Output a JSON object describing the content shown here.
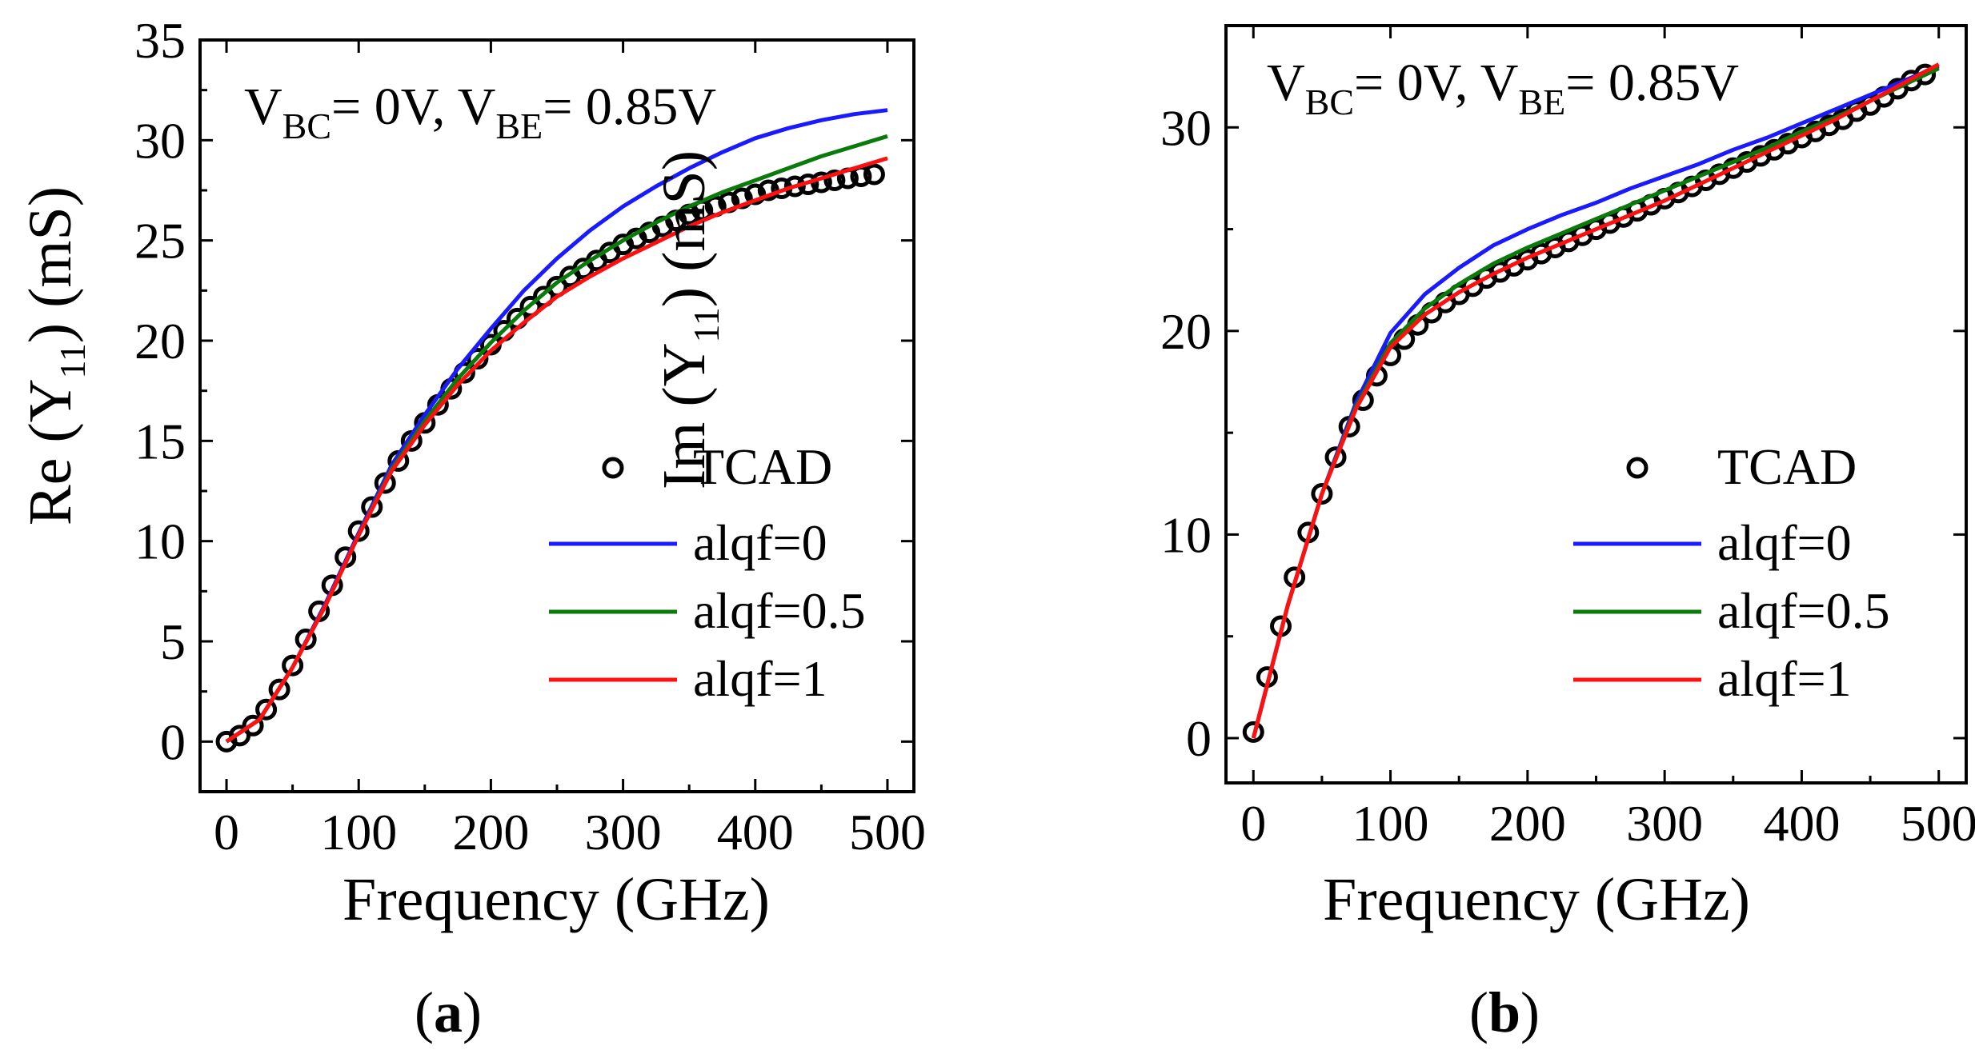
{
  "chart_data": [
    {
      "type": "line",
      "panel_label": "a",
      "xlabel": "Frequency (GHz)",
      "ylabel": {
        "prefix": "Re (Y",
        "sub": "11",
        "suffix": ") (mS)"
      },
      "xlim": [
        -20,
        520
      ],
      "ylim": [
        -2.5,
        35
      ],
      "xticks": [
        0,
        100,
        200,
        300,
        400,
        500
      ],
      "yticks": [
        0,
        5,
        10,
        15,
        20,
        25,
        30,
        35
      ],
      "grid": false,
      "legend_position": "lower-right",
      "annotation": {
        "v1": "V",
        "s1": "BC",
        "m1": "= 0V, V",
        "s2": "BE",
        "m2": "= 0.85V"
      },
      "series": [
        {
          "name": "TCAD",
          "style": "markers",
          "color": "#000000",
          "x": [
            0,
            10,
            20,
            30,
            40,
            50,
            60,
            70,
            80,
            90,
            100,
            110,
            120,
            130,
            140,
            150,
            160,
            170,
            180,
            190,
            200,
            210,
            220,
            230,
            240,
            250,
            260,
            270,
            280,
            290,
            300,
            310,
            320,
            330,
            340,
            350,
            360,
            370,
            380,
            390,
            400,
            410,
            420,
            430,
            440,
            450,
            460,
            470,
            480,
            490
          ],
          "y": [
            0,
            0.3,
            0.8,
            1.6,
            2.6,
            3.8,
            5.1,
            6.5,
            7.8,
            9.2,
            10.5,
            11.7,
            12.9,
            14.0,
            15.0,
            15.9,
            16.8,
            17.6,
            18.4,
            19.1,
            19.8,
            20.5,
            21.1,
            21.7,
            22.2,
            22.7,
            23.2,
            23.6,
            24.0,
            24.4,
            24.8,
            25.1,
            25.4,
            25.7,
            26.0,
            26.3,
            26.5,
            26.7,
            26.9,
            27.1,
            27.3,
            27.5,
            27.6,
            27.7,
            27.8,
            27.9,
            28.0,
            28.1,
            28.2,
            28.3
          ]
        },
        {
          "name": "alqf=0",
          "style": "line",
          "color": "#1a1aff",
          "x": [
            0,
            25,
            50,
            75,
            100,
            125,
            150,
            175,
            200,
            225,
            250,
            275,
            300,
            325,
            350,
            375,
            400,
            425,
            450,
            475,
            500
          ],
          "y": [
            0,
            1.1,
            3.7,
            6.9,
            10.4,
            13.8,
            16.3,
            18.6,
            20.6,
            22.5,
            24.1,
            25.5,
            26.7,
            27.7,
            28.6,
            29.4,
            30.1,
            30.6,
            31.0,
            31.3,
            31.5
          ]
        },
        {
          "name": "alqf=0.5",
          "style": "line",
          "color": "#0a7a0a",
          "x": [
            0,
            25,
            50,
            75,
            100,
            125,
            150,
            175,
            200,
            225,
            250,
            275,
            300,
            325,
            350,
            375,
            400,
            425,
            450,
            475,
            500
          ],
          "y": [
            0,
            1.1,
            3.7,
            6.8,
            10.3,
            13.6,
            16.0,
            18.1,
            19.9,
            21.5,
            22.9,
            24.0,
            25.0,
            25.9,
            26.7,
            27.4,
            28.0,
            28.6,
            29.2,
            29.7,
            30.2
          ]
        },
        {
          "name": "alqf=1",
          "style": "line",
          "color": "#ff1010",
          "x": [
            0,
            25,
            50,
            75,
            100,
            125,
            150,
            175,
            200,
            225,
            250,
            275,
            300,
            325,
            350,
            375,
            400,
            425,
            450,
            475,
            500
          ],
          "y": [
            0,
            1.1,
            3.7,
            6.8,
            10.3,
            13.5,
            15.8,
            17.8,
            19.5,
            20.9,
            22.2,
            23.2,
            24.1,
            24.9,
            25.7,
            26.4,
            27.0,
            27.6,
            28.1,
            28.6,
            29.1
          ]
        }
      ]
    },
    {
      "type": "line",
      "panel_label": "b",
      "xlabel": "Frequency (GHz)",
      "ylabel": {
        "prefix": "Im (Y",
        "sub": "11",
        "suffix": ") (mS)"
      },
      "xlim": [
        -20,
        520
      ],
      "ylim": [
        -2.2,
        35
      ],
      "xticks": [
        0,
        100,
        200,
        300,
        400,
        500
      ],
      "yticks": [
        0,
        10,
        20,
        30
      ],
      "grid": false,
      "legend_position": "lower-right",
      "annotation": {
        "v1": "V",
        "s1": "BC",
        "m1": "= 0V, V",
        "s2": "BE",
        "m2": "= 0.85V"
      },
      "series": [
        {
          "name": "TCAD",
          "style": "markers",
          "color": "#000000",
          "x": [
            0,
            10,
            20,
            30,
            40,
            50,
            60,
            70,
            80,
            90,
            100,
            110,
            120,
            130,
            140,
            150,
            160,
            170,
            180,
            190,
            200,
            210,
            220,
            230,
            240,
            250,
            260,
            270,
            280,
            290,
            300,
            310,
            320,
            330,
            340,
            350,
            360,
            370,
            380,
            390,
            400,
            410,
            420,
            430,
            440,
            450,
            460,
            470,
            480,
            490
          ],
          "y": [
            0.3,
            3.0,
            5.5,
            7.9,
            10.1,
            12.0,
            13.8,
            15.3,
            16.6,
            17.8,
            18.8,
            19.6,
            20.3,
            20.9,
            21.4,
            21.8,
            22.2,
            22.6,
            22.9,
            23.2,
            23.5,
            23.8,
            24.1,
            24.4,
            24.7,
            25.0,
            25.3,
            25.6,
            25.9,
            26.2,
            26.5,
            26.8,
            27.1,
            27.4,
            27.7,
            28.0,
            28.3,
            28.6,
            28.9,
            29.2,
            29.5,
            29.8,
            30.1,
            30.4,
            30.8,
            31.1,
            31.5,
            31.9,
            32.3,
            32.6
          ]
        },
        {
          "name": "alqf=0",
          "style": "line",
          "color": "#1a1aff",
          "x": [
            0,
            25,
            50,
            75,
            100,
            125,
            150,
            175,
            200,
            225,
            250,
            275,
            300,
            325,
            350,
            375,
            400,
            425,
            450,
            475,
            500
          ],
          "y": [
            0,
            6.5,
            12.0,
            16.5,
            19.9,
            21.8,
            23.1,
            24.2,
            25.0,
            25.7,
            26.3,
            27.0,
            27.6,
            28.2,
            28.9,
            29.5,
            30.2,
            30.9,
            31.6,
            32.3,
            33.0
          ]
        },
        {
          "name": "alqf=0.5",
          "style": "line",
          "color": "#0a7a0a",
          "x": [
            0,
            25,
            50,
            75,
            100,
            125,
            150,
            175,
            200,
            225,
            250,
            275,
            300,
            325,
            350,
            375,
            400,
            425,
            450,
            475,
            500
          ],
          "y": [
            0,
            6.5,
            12.0,
            16.3,
            19.4,
            21.1,
            22.3,
            23.3,
            24.1,
            24.8,
            25.5,
            26.2,
            26.9,
            27.6,
            28.3,
            29.0,
            29.8,
            30.5,
            31.3,
            32.1,
            32.9
          ]
        },
        {
          "name": "alqf=1",
          "style": "line",
          "color": "#ff1010",
          "x": [
            0,
            25,
            50,
            75,
            100,
            125,
            150,
            175,
            200,
            225,
            250,
            275,
            300,
            325,
            350,
            375,
            400,
            425,
            450,
            475,
            500
          ],
          "y": [
            0,
            6.5,
            12.0,
            16.2,
            19.2,
            20.8,
            21.9,
            22.8,
            23.6,
            24.3,
            25.0,
            25.7,
            26.4,
            27.2,
            28.0,
            28.8,
            29.6,
            30.4,
            31.3,
            32.2,
            33.1
          ]
        }
      ]
    }
  ]
}
